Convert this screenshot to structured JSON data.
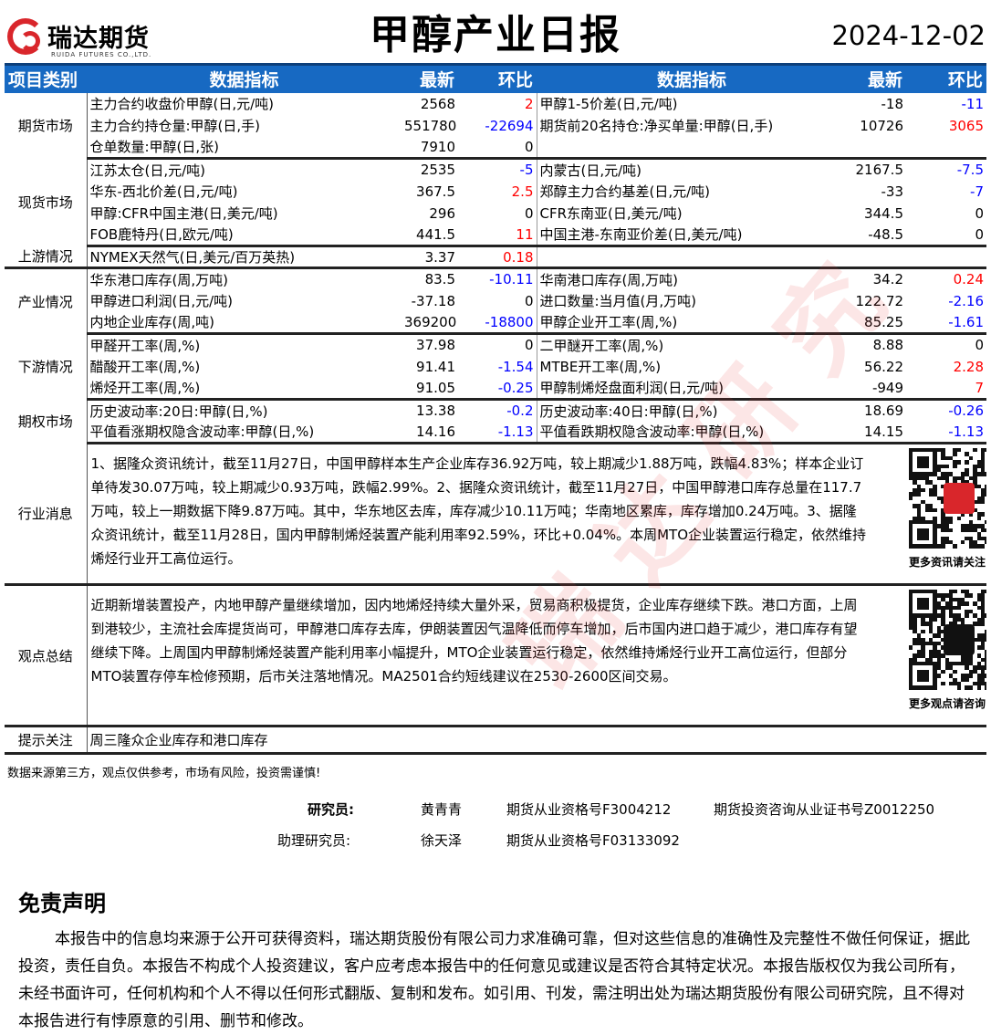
{
  "header": {
    "logo_cn": "瑞达期货",
    "logo_en": "RUIDA FUTURES CO.,LTD.",
    "title": "甲醇产业日报",
    "date": "2024-12-02"
  },
  "colors": {
    "header_bg": "#1769c2",
    "up": "#ff0000",
    "down": "#0000ff",
    "flat": "#000000",
    "logo": "#d9262b"
  },
  "table": {
    "headers": [
      "项目类别",
      "数据指标",
      "最新",
      "环比",
      "数据指标",
      "最新",
      "环比"
    ],
    "sections": [
      {
        "category": "期货市场",
        "rows": [
          [
            {
              "name": "主力合约收盘价甲醇(日,元/吨)",
              "value": "2568",
              "change": "2"
            },
            {
              "name": "甲醇1-5价差(日,元/吨)",
              "value": "-18",
              "change": "-11"
            }
          ],
          [
            {
              "name": "主力合约持仓量:甲醇(日,手)",
              "value": "551780",
              "change": "-22694"
            },
            {
              "name": "期货前20名持仓:净买单量:甲醇(日,手)",
              "value": "10726",
              "change": "3065"
            }
          ],
          [
            {
              "name": "仓单数量:甲醇(日,张)",
              "value": "7910",
              "change": "0"
            },
            null
          ]
        ]
      },
      {
        "category": "现货市场",
        "rows": [
          [
            {
              "name": "江苏太仓(日,元/吨)",
              "value": "2535",
              "change": "-5"
            },
            {
              "name": "内蒙古(日,元/吨)",
              "value": "2167.5",
              "change": "-7.5"
            }
          ],
          [
            {
              "name": "华东-西北价差(日,元/吨)",
              "value": "367.5",
              "change": "2.5"
            },
            {
              "name": "郑醇主力合约基差(日,元/吨)",
              "value": "-33",
              "change": "-7"
            }
          ],
          [
            {
              "name": "甲醇:CFR中国主港(日,美元/吨)",
              "value": "296",
              "change": "0"
            },
            {
              "name": "CFR东南亚(日,美元/吨)",
              "value": "344.5",
              "change": "0"
            }
          ],
          [
            {
              "name": "FOB鹿特丹(日,欧元/吨)",
              "value": "441.5",
              "change": "11"
            },
            {
              "name": "中国主港-东南亚价差(日,美元/吨)",
              "value": "-48.5",
              "change": "0"
            }
          ]
        ]
      },
      {
        "category": "上游情况",
        "rows": [
          [
            {
              "name": "NYMEX天然气(日,美元/百万英热)",
              "value": "3.37",
              "change": "0.18"
            },
            null
          ]
        ]
      },
      {
        "category": "产业情况",
        "rows": [
          [
            {
              "name": "华东港口库存(周,万吨)",
              "value": "83.5",
              "change": "-10.11"
            },
            {
              "name": "华南港口库存(周,万吨)",
              "value": "34.2",
              "change": "0.24"
            }
          ],
          [
            {
              "name": "甲醇进口利润(日,元/吨)",
              "value": "-37.18",
              "change": "0"
            },
            {
              "name": "进口数量:当月值(月,万吨)",
              "value": "122.72",
              "change": "-2.16"
            }
          ],
          [
            {
              "name": "内地企业库存(周,吨)",
              "value": "369200",
              "change": "-18800"
            },
            {
              "name": "甲醇企业开工率(周,%)",
              "value": "85.25",
              "change": "-1.61"
            }
          ]
        ]
      },
      {
        "category": "下游情况",
        "rows": [
          [
            {
              "name": "甲醛开工率(周,%)",
              "value": "37.98",
              "change": "0"
            },
            {
              "name": "二甲醚开工率(周,%)",
              "value": "8.88",
              "change": "0"
            }
          ],
          [
            {
              "name": "醋酸开工率(周,%)",
              "value": "91.41",
              "change": "-1.54"
            },
            {
              "name": "MTBE开工率(周,%)",
              "value": "56.22",
              "change": "2.28"
            }
          ],
          [
            {
              "name": "烯烃开工率(周,%)",
              "value": "91.05",
              "change": "-0.25"
            },
            {
              "name": "甲醇制烯烃盘面利润(日,元/吨)",
              "value": "-949",
              "change": "7"
            }
          ]
        ]
      },
      {
        "category": "期权市场",
        "rows": [
          [
            {
              "name": "历史波动率:20日:甲醇(日,%)",
              "value": "13.38",
              "change": "-0.2"
            },
            {
              "name": "历史波动率:40日:甲醇(日,%)",
              "value": "18.69",
              "change": "-0.26"
            }
          ],
          [
            {
              "name": "平值看涨期权隐含波动率:甲醇(日,%)",
              "value": "14.16",
              "change": "-1.13"
            },
            {
              "name": "平值看跌期权隐含波动率:甲醇(日,%)",
              "value": "14.15",
              "change": "-1.13"
            }
          ]
        ]
      }
    ],
    "news": {
      "category": "行业消息",
      "text": "1、据隆众资讯统计，截至11月27日，中国甲醇样本生产企业库存36.92万吨，较上期减少1.88万吨，跌幅4.83%；样本企业订单待发30.07万吨，较上期减少0.93万吨，跌幅2.99%。2、据隆众资讯统计，截至11月27日，中国甲醇港口库存总量在117.7万吨，较上一期数据下降9.87万吨。其中，华东地区去库，库存减少10.11万吨；华南地区累库，库存增加0.24万吨。3、据隆众资讯统计，截至11月28日，国内甲醇制烯烃装置产能利用率92.59%，环比+0.04%。本周MTO企业装置运行稳定，依然维持烯烃行业开工高位运行。",
      "qr_caption": "更多资讯请关注!"
    },
    "view": {
      "category": "观点总结",
      "text": "近期新增装置投产，内地甲醇产量继续增加，因内地烯烃持续大量外采，贸易商积极提货，企业库存继续下跌。港口方面，上周到港较少，主流社会库提货尚可，甲醇港口库存去库，伊朗装置因气温降低而停车增加，后市国内进口趋于减少，港口库存有望继续下降。上周国内甲醇制烯烃装置产能利用率小幅提升，MTO企业装置运行稳定，依然维持烯烃行业开工高位运行，但部分MTO装置存停车检修预期，后市关注落地情况。MA2501合约短线建议在2530-2600区间交易。",
      "qr_caption": "更多观点请咨询!"
    },
    "hint": {
      "category": "提示关注",
      "text": "周三隆众企业库存和港口库存"
    }
  },
  "note": "数据来源第三方，观点仅供参考，市场有风险，投资需谨慎!",
  "staff": {
    "researcher_label": "研究员:",
    "researcher_name": "黄青青",
    "researcher_cert1": "期货从业资格号F3004212",
    "researcher_cert2": "期货投资咨询从业证书号Z0012250",
    "assistant_label": "助理研究员:",
    "assistant_name": "徐天泽",
    "assistant_cert": "期货从业资格号F03133092"
  },
  "disclaimer": {
    "title": "免责声明",
    "text": "本报告中的信息均来源于公开可获得资料，瑞达期货股份有限公司力求准确可靠，但对这些信息的准确性及完整性不做任何保证，据此投资，责任自负。本报告不构成个人投资建议，客户应考虑本报告中的任何意见或建议是否符合其特定状况。本报告版权仅为我公司所有，未经书面许可，任何机构和个人不得以任何形式翻版、复制和发布。如引用、刊发，需注明出处为瑞达期货股份有限公司研究院，且不得对本报告进行有悖原意的引用、删节和修改。"
  },
  "watermark": "瑞达研究"
}
